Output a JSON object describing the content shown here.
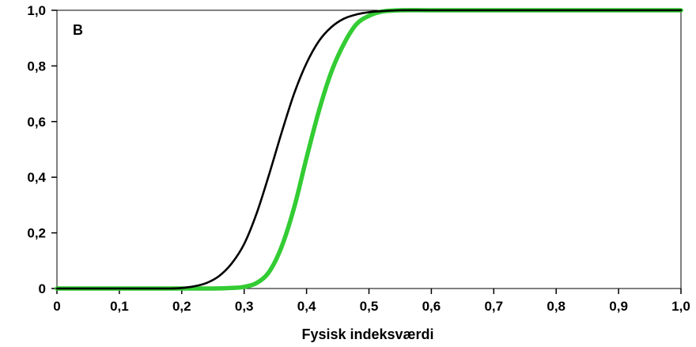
{
  "chart_data": {
    "type": "line",
    "panel_label": "B",
    "xlabel": "Fysisk indeksværdi",
    "ylabel": "",
    "xlim": [
      0,
      1.0
    ],
    "ylim": [
      0,
      1.0
    ],
    "x_ticks": [
      0,
      0.1,
      0.2,
      0.3,
      0.4,
      0.5,
      0.6,
      0.7,
      0.8,
      0.9,
      1.0
    ],
    "x_tick_labels": [
      "0",
      "0,1",
      "0,2",
      "0,3",
      "0,4",
      "0,5",
      "0,6",
      "0,7",
      "0,8",
      "0,9",
      "1,0"
    ],
    "y_ticks": [
      0,
      0.2,
      0.4,
      0.6,
      0.8,
      1.0
    ],
    "y_tick_labels": [
      "0",
      "0,2",
      "0,4",
      "0,6",
      "0,8",
      "1,0"
    ],
    "grid": false,
    "series": [
      {
        "color": "#000000",
        "x": [
          0,
          0.1,
          0.18,
          0.2,
          0.22,
          0.24,
          0.26,
          0.28,
          0.3,
          0.32,
          0.34,
          0.36,
          0.38,
          0.4,
          0.42,
          0.44,
          0.46,
          0.48,
          0.5,
          0.52,
          0.55,
          0.6,
          0.7,
          0.8,
          0.9,
          1.0
        ],
        "y": [
          0,
          0,
          0,
          0.002,
          0.008,
          0.02,
          0.045,
          0.09,
          0.16,
          0.27,
          0.41,
          0.56,
          0.7,
          0.81,
          0.89,
          0.94,
          0.97,
          0.985,
          0.993,
          0.997,
          1.0,
          1.0,
          1.0,
          1.0,
          1.0,
          1.0
        ]
      },
      {
        "color": "#33cc33",
        "x": [
          0,
          0.1,
          0.2,
          0.25,
          0.28,
          0.3,
          0.32,
          0.34,
          0.36,
          0.38,
          0.4,
          0.42,
          0.44,
          0.46,
          0.48,
          0.5,
          0.52,
          0.55,
          0.6,
          0.7,
          0.8,
          0.9,
          1.0
        ],
        "y": [
          0,
          0,
          0,
          0,
          0.002,
          0.006,
          0.02,
          0.06,
          0.15,
          0.29,
          0.47,
          0.64,
          0.78,
          0.88,
          0.95,
          0.98,
          0.995,
          1.0,
          1.0,
          1.0,
          1.0,
          1.0,
          1.0
        ]
      }
    ]
  }
}
